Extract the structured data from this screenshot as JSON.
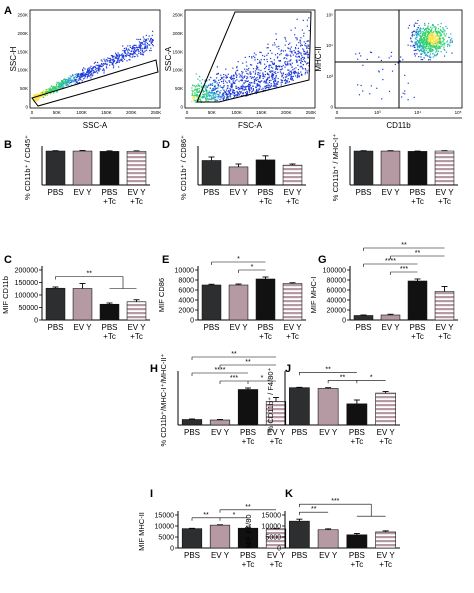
{
  "colors": {
    "pbs": "#2c2e2f",
    "ev_y": "#b59aa3",
    "pbs_tc": "#111111",
    "ev_y_tc_stripe": "#b59aa3",
    "ev_y_tc_bg": "#ffffff",
    "axis": "#000000",
    "density_low": "#1f3bd8",
    "density_mid": "#2fd36f",
    "density_high": "#ffe34a",
    "gate": "#000000"
  },
  "flow_panels": [
    {
      "letter": "A",
      "xlabel": "SSC-A",
      "ylabel": "SSC-H",
      "xticks": [
        "0",
        "50K",
        "100K",
        "150K",
        "200K",
        "250K"
      ],
      "yticks": [
        "0",
        "50K",
        "100K",
        "150K",
        "200K",
        "250K"
      ]
    },
    {
      "letter": "",
      "xlabel": "FSC-A",
      "ylabel": "SSC-A",
      "xticks": [
        "0",
        "50K",
        "100K",
        "150K",
        "200K",
        "250K"
      ],
      "yticks": [
        "0",
        "50K",
        "100K",
        "150K",
        "200K",
        "250K"
      ]
    },
    {
      "letter": "",
      "xlabel": "CD11b",
      "ylabel": "MHC-II",
      "xticks": [
        "0",
        "10³",
        "10⁴",
        "10⁵"
      ],
      "yticks": [
        "0",
        "10³",
        "10⁴",
        "10⁵"
      ]
    }
  ],
  "chart_data": [
    {
      "type": "bar",
      "letter": "B",
      "ylabel": "% CD11b⁺ / CD45⁺",
      "categories": [
        "PBS",
        "EV Y",
        "PBS +Tc",
        "EV Y +Tc"
      ],
      "values": [
        97,
        97,
        96,
        96
      ],
      "errors": [
        1,
        1.5,
        1.5,
        1.5
      ],
      "ylim": [
        0,
        100
      ],
      "yticks": [],
      "significance": []
    },
    {
      "type": "bar",
      "letter": "D",
      "ylabel": "% CD11b⁺ / CD86⁺",
      "categories": [
        "PBS",
        "EV Y",
        "PBS +Tc",
        "EV Y +Tc"
      ],
      "values": [
        42,
        31,
        43,
        34
      ],
      "errors": [
        6,
        5,
        7,
        2
      ],
      "ylim": [
        0,
        60
      ],
      "yticks": [],
      "significance": []
    },
    {
      "type": "bar",
      "letter": "F",
      "ylabel": "% CD11b⁺ / MHC-I⁺",
      "categories": [
        "PBS",
        "EV Y",
        "PBS +Tc",
        "EV Y +Tc"
      ],
      "values": [
        97,
        97,
        96,
        97
      ],
      "errors": [
        1,
        1,
        1,
        1
      ],
      "ylim": [
        0,
        100
      ],
      "yticks": [],
      "significance": []
    },
    {
      "type": "bar",
      "letter": "C",
      "ylabel": "MIF CD11b",
      "categories": [
        "PBS",
        "EV Y",
        "PBS +Tc",
        "EV Y +Tc"
      ],
      "values": [
        127000,
        126000,
        63000,
        73000
      ],
      "errors": [
        5000,
        20000,
        5000,
        8000
      ],
      "ylim": [
        0,
        200000
      ],
      "yticks": [
        "0",
        "50000",
        "100000",
        "150000",
        "200000"
      ],
      "significance": [
        {
          "from": 0,
          "to": [
            2,
            3
          ],
          "label": "**"
        }
      ]
    },
    {
      "type": "bar",
      "letter": "E",
      "ylabel": "MIF CD86",
      "categories": [
        "PBS",
        "EV Y",
        "PBS +Tc",
        "EV Y +Tc"
      ],
      "values": [
        7000,
        7000,
        8200,
        7300
      ],
      "errors": [
        150,
        200,
        400,
        150
      ],
      "ylim": [
        0,
        10000
      ],
      "yticks": [
        "0",
        "2000",
        "4000",
        "6000",
        "8000",
        "10000"
      ],
      "significance": [
        {
          "from": 0,
          "to": 2,
          "label": "*",
          "level": 1
        },
        {
          "from": 1,
          "to": 2,
          "label": "*",
          "level": 0
        }
      ]
    },
    {
      "type": "bar",
      "letter": "G",
      "ylabel": "MIF MHC-I",
      "categories": [
        "PBS",
        "EV Y",
        "PBS +Tc",
        "EV Y +Tc"
      ],
      "values": [
        9000,
        10000,
        78000,
        57000
      ],
      "errors": [
        1000,
        1500,
        4000,
        10000
      ],
      "ylim": [
        0,
        100000
      ],
      "yticks": [
        "0",
        "20000",
        "40000",
        "60000",
        "80000",
        "100000"
      ],
      "significance": [
        {
          "from": 0,
          "to": 3,
          "label": "**",
          "level": 3
        },
        {
          "from": 1,
          "to": 3,
          "label": "**",
          "level": 2
        },
        {
          "from": 0,
          "to": 2,
          "label": "****",
          "level": 1
        },
        {
          "from": 1,
          "to": 2,
          "label": "***",
          "level": 0
        }
      ]
    },
    {
      "type": "bar",
      "letter": "H",
      "ylabel": "% CD11b⁺/MHC-I⁺/MHC-II⁺",
      "categories": [
        "PBS",
        "EV Y",
        "PBS +Tc",
        "EV Y +Tc"
      ],
      "values": [
        11,
        10,
        71,
        47
      ],
      "errors": [
        1,
        1,
        3,
        8
      ],
      "ylim": [
        0,
        100
      ],
      "yticks": [],
      "significance": [
        {
          "from": 0,
          "to": 3,
          "label": "**",
          "level": 3
        },
        {
          "from": 1,
          "to": 3,
          "label": "**",
          "level": 2
        },
        {
          "from": 0,
          "to": 2,
          "label": "****",
          "level": 1
        },
        {
          "from": 1,
          "to": 2,
          "label": "***",
          "level": 0
        },
        {
          "from": 2,
          "to": 3,
          "label": "*",
          "level": 0
        }
      ]
    },
    {
      "type": "bar",
      "letter": "J",
      "ylabel": "% CD11b⁺ / F4/80⁺",
      "categories": [
        "PBS",
        "EV Y",
        "PBS +Tc",
        "EV Y +Tc"
      ],
      "values": [
        97,
        95,
        55,
        83
      ],
      "errors": [
        1,
        2,
        10,
        4
      ],
      "ylim": [
        0,
        130
      ],
      "yticks": [],
      "significance": [
        {
          "from": 0,
          "to": 2,
          "label": "**",
          "level": 1
        },
        {
          "from": 1,
          "to": 2,
          "label": "**",
          "level": 0
        },
        {
          "from": 2,
          "to": 3,
          "label": "*",
          "level": 0
        }
      ]
    },
    {
      "type": "bar",
      "letter": "I",
      "ylabel": "MIF MHC-II",
      "categories": [
        "PBS",
        "EV Y",
        "PBS +Tc",
        "EV Y +Tc"
      ],
      "values": [
        8800,
        10400,
        9000,
        8700
      ],
      "errors": [
        150,
        150,
        200,
        100
      ],
      "ylim": [
        0,
        15000
      ],
      "yticks": [
        "0",
        "5000",
        "10000",
        "15000"
      ],
      "significance": [
        {
          "from": 0,
          "to": 1,
          "label": "**",
          "level": 0
        },
        {
          "from": 1,
          "to": 2,
          "label": "*",
          "level": 0
        },
        {
          "from": 1,
          "to": 3,
          "label": "**",
          "level": 1
        }
      ]
    },
    {
      "type": "bar",
      "letter": "K",
      "ylabel": "MIF F4/80",
      "categories": [
        "PBS",
        "EV Y",
        "PBS +Tc",
        "EV Y +Tc"
      ],
      "values": [
        12200,
        8300,
        6000,
        7300
      ],
      "errors": [
        900,
        400,
        600,
        500
      ],
      "ylim": [
        0,
        15000
      ],
      "yticks": [
        "0",
        "5000",
        "10000",
        "15000"
      ],
      "significance": [
        {
          "from": 0,
          "to": 1,
          "label": "**",
          "level": 0
        },
        {
          "from": 0,
          "to": [
            2,
            3
          ],
          "label": "***",
          "level": 1
        }
      ]
    }
  ]
}
